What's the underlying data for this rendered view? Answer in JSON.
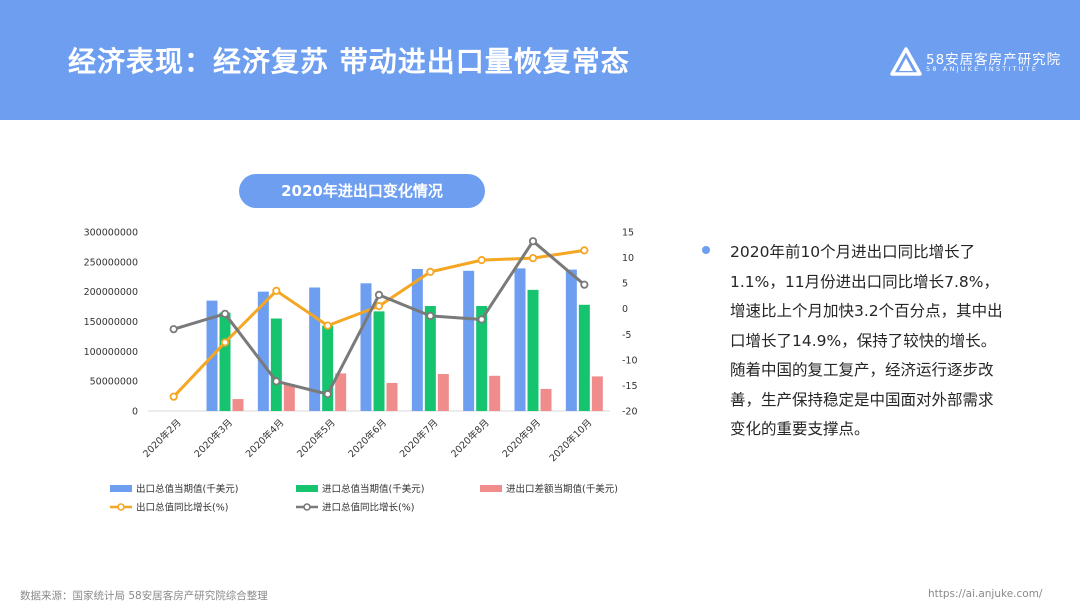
{
  "header": {
    "title": "经济表现：经济复苏 带动进出口量恢复常态",
    "logo_cn": "58安居客房产研究院",
    "logo_en": "58 ANJUKE INSTITUTE",
    "bg_color": "#6d9ef0"
  },
  "chart_data": {
    "type": "bar",
    "title": "2020年进出口变化情况",
    "categories": [
      "2020年2月",
      "2020年3月",
      "2020年4月",
      "2020年5月",
      "2020年6月",
      "2020年7月",
      "2020年8月",
      "2020年9月",
      "2020年10月"
    ],
    "y_left": {
      "min": 0,
      "max": 300000000,
      "ticks": [
        "0",
        "50000000",
        "100000000",
        "150000000",
        "200000000",
        "250000000",
        "300000000"
      ]
    },
    "y_right": {
      "min": -20,
      "max": 15,
      "ticks": [
        "15",
        "10",
        "5",
        "0",
        "-5",
        "-10",
        "-15",
        "-20"
      ]
    },
    "bar_series": [
      {
        "name": "出口总值当期值(千美元)",
        "color": "#6d9ef0",
        "values": [
          null,
          185000000,
          200000000,
          207000000,
          214000000,
          238000000,
          235000000,
          239000000,
          237000000
        ]
      },
      {
        "name": "进口总值当期值(千美元)",
        "color": "#16c46f",
        "values": [
          null,
          165000000,
          155000000,
          143000000,
          167000000,
          176000000,
          176000000,
          203000000,
          178000000
        ]
      },
      {
        "name": "进出口差额当期值(千美元)",
        "color": "#f08c8c",
        "values": [
          null,
          20000000,
          45000000,
          63000000,
          47000000,
          62000000,
          59000000,
          37000000,
          58000000
        ]
      }
    ],
    "line_series": [
      {
        "name": "出口总值同比增长(%)",
        "color": "#f5a623",
        "values": [
          -17.2,
          -6.6,
          3.5,
          -3.3,
          0.5,
          7.2,
          9.5,
          9.9,
          11.4
        ]
      },
      {
        "name": "进口总值同比增长(%)",
        "color": "#7a7a7a",
        "values": [
          -4,
          -1,
          -14.2,
          -16.7,
          2.7,
          -1.4,
          -2.1,
          13.2,
          4.7
        ]
      }
    ],
    "legend_placement": "bottom",
    "grid": false
  },
  "text": {
    "paragraph": "2020年前10个月进出口同比增长了1.1%，11月份进出口同比增长7.8%，增速比上个月加快3.2个百分点，其中出口增长了14.9%，保持了较快的增长。随着中国的复工复产，经济运行逐步改善，生产保持稳定是中国面对外部需求变化的重要支撑点。"
  },
  "footer": {
    "source": "数据来源：国家统计局 58安居客房产研究院综合整理",
    "url": "https://ai.anjuke.com/"
  }
}
